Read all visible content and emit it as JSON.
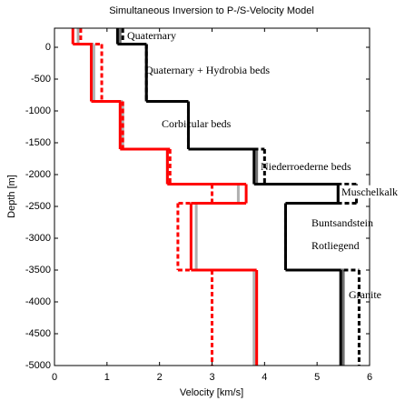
{
  "chart_data": {
    "type": "step",
    "title": "Simultaneous Inversion to P-/S-Velocity Model",
    "xlabel": "Velocity [km/s]",
    "ylabel": "Depth [m]",
    "xlim": [
      0,
      6
    ],
    "ylim": [
      -5000,
      300
    ],
    "xticks": [
      0,
      1,
      2,
      3,
      4,
      5,
      6
    ],
    "yticks": [
      0,
      -500,
      -1000,
      -1500,
      -2000,
      -2500,
      -3000,
      -3500,
      -4000,
      -4500,
      -5000
    ],
    "layer_boundaries": [
      300,
      50,
      -850,
      -1600,
      -2150,
      -2450,
      -3500,
      -5000
    ],
    "annotations": [
      "Quaternary",
      "Quaternary + Hydrobia beds",
      "Corbicular beds",
      "Niederroederne beds",
      "Muschelkalk",
      "Buntsandstein",
      "Rotliegend",
      "Granite"
    ],
    "series": [
      {
        "color": "#b0b0b0",
        "dashed": false,
        "values": [
          0.45,
          0.75,
          1.3,
          2.15,
          3.5,
          2.7,
          3.8
        ]
      },
      {
        "color": "#707070",
        "dashed": false,
        "values": [
          1.25,
          1.75,
          2.55,
          3.85,
          5.4,
          4.4,
          5.5
        ]
      },
      {
        "color": "#ff0000",
        "dashed": true,
        "values": [
          0.5,
          0.9,
          1.3,
          2.2,
          3.0,
          2.35,
          3.0
        ]
      },
      {
        "color": "#ff0000",
        "dashed": false,
        "values": [
          0.35,
          0.7,
          1.25,
          2.15,
          3.65,
          2.6,
          3.85
        ]
      },
      {
        "color": "#000000",
        "dashed": true,
        "values": [
          1.3,
          1.75,
          2.55,
          4.0,
          5.75,
          4.4,
          5.8
        ]
      },
      {
        "color": "#000000",
        "dashed": false,
        "values": [
          1.2,
          1.75,
          2.55,
          3.8,
          5.4,
          4.4,
          5.45
        ]
      }
    ]
  }
}
